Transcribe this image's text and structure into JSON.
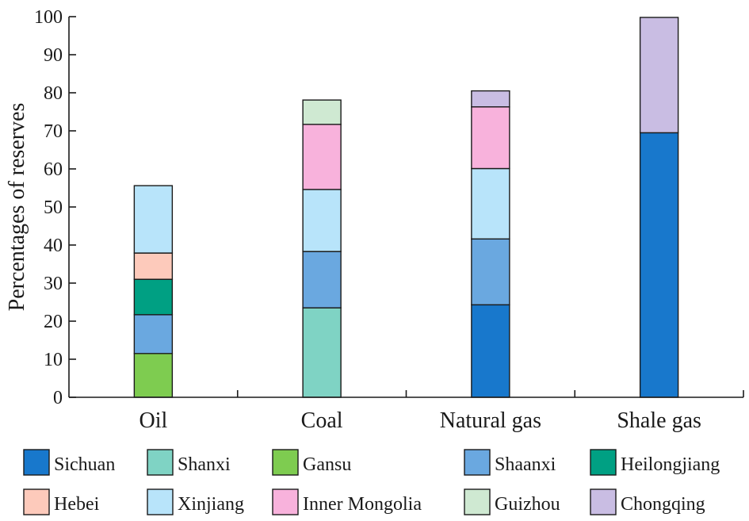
{
  "chart_data": {
    "type": "bar",
    "stacked": true,
    "ylabel": "Percentages of reserves",
    "ylim": [
      0,
      100
    ],
    "yticks": [
      0,
      10,
      20,
      30,
      40,
      50,
      60,
      70,
      80,
      90,
      100
    ],
    "categories": [
      "Oil",
      "Coal",
      "Natural gas",
      "Shale gas"
    ],
    "series": [
      {
        "name": "Sichuan",
        "color": "#1878cc",
        "values": [
          0,
          0,
          24.3,
          69.5
        ]
      },
      {
        "name": "Shanxi",
        "color": "#7fd3c4",
        "values": [
          0,
          23.5,
          0,
          0
        ]
      },
      {
        "name": "Gansu",
        "color": "#7ecc50",
        "values": [
          11.5,
          0,
          0,
          0
        ]
      },
      {
        "name": "Shaanxi",
        "color": "#6aa8e0",
        "values": [
          10.2,
          14.8,
          17.3,
          0
        ]
      },
      {
        "name": "Heilongjiang",
        "color": "#00a083",
        "values": [
          9.3,
          0,
          0,
          0
        ]
      },
      {
        "name": "Hebei",
        "color": "#fdcabb",
        "values": [
          6.9,
          0,
          0,
          0
        ]
      },
      {
        "name": "Xinjiang",
        "color": "#b8e4fa",
        "values": [
          17.7,
          16.3,
          18.5,
          0
        ]
      },
      {
        "name": "Inner Mongolia",
        "color": "#f8b2dc",
        "values": [
          0,
          17.1,
          16.2,
          0
        ]
      },
      {
        "name": "Guizhou",
        "color": "#cfe9d2",
        "values": [
          0,
          6.4,
          0,
          0
        ]
      },
      {
        "name": "Chongqing",
        "color": "#c9bde3",
        "values": [
          0,
          0,
          4.2,
          30.3
        ]
      }
    ],
    "legend": {
      "position": "bottom",
      "columns": 5
    }
  }
}
